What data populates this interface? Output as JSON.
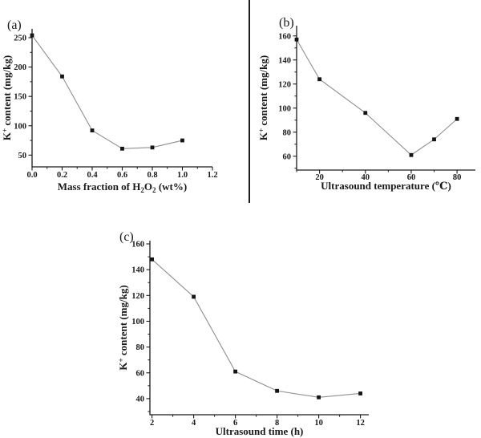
{
  "figure": {
    "background_color": "#ffffff",
    "divider_color": "#1c1c1c",
    "axis_color": "#1a1a1a",
    "text_color": "#1a1a1a"
  },
  "chart_data": [
    {
      "type": "line",
      "panel_label": "(a)",
      "xlabel": "Mass fraction of H2O2 (wt%)",
      "xlabel_parts": [
        {
          "t": "Mass fraction of H"
        },
        {
          "t": "2",
          "sub": true
        },
        {
          "t": "O"
        },
        {
          "t": "2",
          "sub": true
        },
        {
          "t": " (wt%)"
        }
      ],
      "ylabel": "K+ content (mg/kg)",
      "ylabel_parts": [
        {
          "t": "K"
        },
        {
          "t": "+",
          "sup": true
        },
        {
          "t": " content (mg/kg)"
        }
      ],
      "series": [
        {
          "name": "K+ content",
          "x": [
            0.0,
            0.2,
            0.4,
            0.6,
            0.8,
            1.0
          ],
          "y": [
            254,
            184,
            92,
            61,
            63,
            75
          ]
        }
      ],
      "xlim": [
        0,
        1.2
      ],
      "ylim": [
        30,
        265
      ],
      "xticks": [
        0,
        0.2,
        0.4,
        0.6,
        0.8,
        1.0,
        1.2
      ],
      "xtick_labels": [
        "0.0",
        "0.2",
        "0.4",
        "0.6",
        "0.8",
        "1.0",
        "1.2"
      ],
      "yticks": [
        50,
        100,
        150,
        200,
        250
      ],
      "ytick_labels": [
        "50",
        "100",
        "150",
        "200",
        "250"
      ],
      "x_minor_step": 0.1,
      "y_minor_step": 25,
      "grid": false,
      "legend": "none",
      "marker": "square",
      "marker_color": "#141414",
      "line_color": "#8f8f8f"
    },
    {
      "type": "line",
      "panel_label": "(b)",
      "xlabel": "Ultrasound temperature (℃)",
      "xlabel_parts": [
        {
          "t": "Ultrasound temperature (℃)"
        }
      ],
      "ylabel": "K+ content (mg/kg)",
      "ylabel_parts": [
        {
          "t": "K"
        },
        {
          "t": "+",
          "sup": true
        },
        {
          "t": " content (mg/kg)"
        }
      ],
      "series": [
        {
          "name": "K+ content",
          "x": [
            10,
            20,
            40,
            60,
            70,
            80
          ],
          "y": [
            157,
            124,
            96,
            61,
            74,
            91
          ]
        }
      ],
      "xlim": [
        10,
        88
      ],
      "ylim": [
        48.5,
        168.5
      ],
      "xticks": [
        20,
        40,
        60,
        80
      ],
      "xtick_labels": [
        "20",
        "40",
        "60",
        "80"
      ],
      "yticks": [
        60,
        80,
        100,
        120,
        140,
        160
      ],
      "ytick_labels": [
        "60",
        "80",
        "100",
        "120",
        "140",
        "160"
      ],
      "x_minor_step": 10,
      "y_minor_step": 10,
      "grid": false,
      "legend": "none",
      "marker": "square",
      "marker_color": "#141414",
      "line_color": "#8f8f8f"
    },
    {
      "type": "line",
      "panel_label": "(c)",
      "xlabel": "Ultrasound time (h)",
      "xlabel_parts": [
        {
          "t": "Ultrasound time (h)"
        }
      ],
      "ylabel": "K+ content (mg/kg)",
      "ylabel_parts": [
        {
          "t": "K"
        },
        {
          "t": "+",
          "sup": true
        },
        {
          "t": " content (mg/kg)"
        }
      ],
      "series": [
        {
          "name": "K+ content",
          "x": [
            2,
            4,
            6,
            8,
            10,
            12
          ],
          "y": [
            148,
            119,
            61,
            46,
            41,
            44
          ]
        }
      ],
      "xlim": [
        1.9,
        12.4
      ],
      "ylim": [
        27.5,
        162.5
      ],
      "xticks": [
        2,
        4,
        6,
        8,
        10,
        12
      ],
      "xtick_labels": [
        "2",
        "4",
        "6",
        "8",
        "10",
        "12"
      ],
      "yticks": [
        40,
        60,
        80,
        100,
        120,
        140,
        160
      ],
      "ytick_labels": [
        "40",
        "60",
        "80",
        "100",
        "120",
        "140",
        "160"
      ],
      "x_minor_step": 1,
      "y_minor_step": 10,
      "grid": false,
      "legend": "none",
      "marker": "square",
      "marker_color": "#141414",
      "line_color": "#8f8f8f"
    }
  ]
}
